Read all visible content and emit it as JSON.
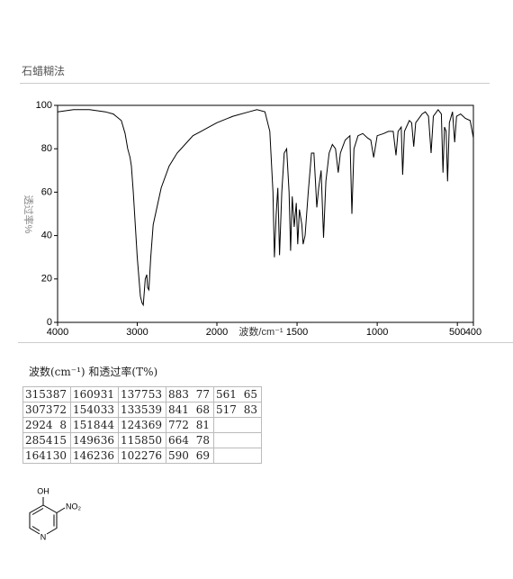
{
  "header": {
    "title": "石蜡糊法"
  },
  "chart_data": {
    "type": "line",
    "xlabel": "波数/cm⁻¹",
    "ylabel": "透过率%",
    "color": "#000000",
    "xlim": [
      4000,
      400
    ],
    "xbreak": 2000,
    "ylim": [
      0,
      100
    ],
    "xticks": [
      4000,
      3000,
      2000,
      1500,
      1000,
      500,
      400
    ],
    "yticks": [
      0,
      20,
      40,
      60,
      80,
      100
    ],
    "x": [
      4000,
      3800,
      3600,
      3400,
      3300,
      3200,
      3153,
      3120,
      3090,
      3073,
      3050,
      3000,
      2960,
      2940,
      2924,
      2900,
      2880,
      2870,
      2854,
      2830,
      2800,
      2700,
      2600,
      2500,
      2400,
      2300,
      2200,
      2100,
      2000,
      1900,
      1800,
      1750,
      1700,
      1670,
      1650,
      1641,
      1630,
      1620,
      1609,
      1595,
      1580,
      1565,
      1550,
      1540,
      1530,
      1518,
      1505,
      1496,
      1485,
      1470,
      1462,
      1450,
      1430,
      1410,
      1395,
      1385,
      1377,
      1365,
      1350,
      1335,
      1320,
      1300,
      1280,
      1260,
      1243,
      1230,
      1200,
      1170,
      1158,
      1145,
      1120,
      1090,
      1060,
      1040,
      1022,
      1000,
      960,
      930,
      900,
      883,
      870,
      850,
      841,
      830,
      800,
      785,
      772,
      760,
      720,
      700,
      680,
      664,
      650,
      620,
      600,
      590,
      580,
      570,
      561,
      550,
      530,
      517,
      505,
      480,
      450,
      420,
      400
    ],
    "values": [
      97,
      98,
      98,
      97,
      96,
      93,
      87,
      80,
      76,
      72,
      60,
      30,
      12,
      9,
      8,
      20,
      22,
      16,
      15,
      30,
      45,
      62,
      72,
      78,
      82,
      86,
      88,
      90,
      92,
      95,
      97,
      98,
      97,
      88,
      60,
      30,
      50,
      62,
      31,
      60,
      78,
      80,
      60,
      33,
      58,
      44,
      55,
      36,
      52,
      45,
      36,
      40,
      60,
      78,
      78,
      65,
      53,
      62,
      70,
      39,
      65,
      78,
      82,
      80,
      69,
      78,
      84,
      86,
      50,
      80,
      86,
      87,
      85,
      84,
      76,
      86,
      87,
      88,
      88,
      77,
      88,
      90,
      68,
      88,
      93,
      92,
      81,
      92,
      96,
      97,
      95,
      78,
      95,
      98,
      96,
      69,
      90,
      88,
      65,
      92,
      97,
      83,
      95,
      96,
      94,
      93,
      85
    ]
  },
  "table": {
    "title": "波数(cm⁻¹) 和透过率(T%)",
    "columns": [
      [
        [
          3153,
          87
        ],
        [
          3073,
          72
        ],
        [
          2924,
          8
        ],
        [
          2854,
          15
        ],
        [
          1641,
          30
        ]
      ],
      [
        [
          1609,
          31
        ],
        [
          1540,
          33
        ],
        [
          1518,
          44
        ],
        [
          1496,
          36
        ],
        [
          1462,
          36
        ]
      ],
      [
        [
          1377,
          53
        ],
        [
          1335,
          39
        ],
        [
          1243,
          69
        ],
        [
          1158,
          50
        ],
        [
          1022,
          76
        ]
      ],
      [
        [
          883,
          77
        ],
        [
          841,
          68
        ],
        [
          772,
          81
        ],
        [
          664,
          78
        ],
        [
          590,
          69
        ]
      ],
      [
        [
          561,
          65
        ],
        [
          517,
          83
        ]
      ]
    ]
  },
  "structure": {
    "substituent_top": "OH",
    "substituent_right": "NO₂",
    "ring_atom": "N"
  }
}
